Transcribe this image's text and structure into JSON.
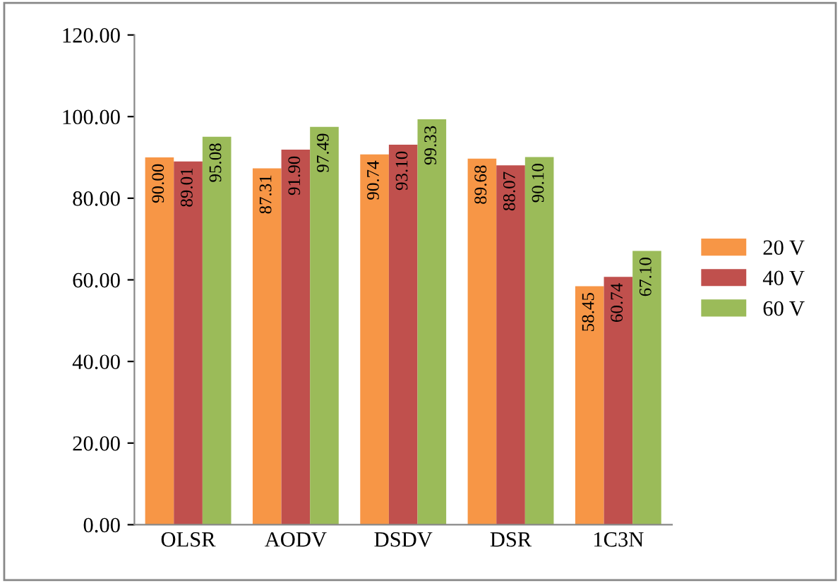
{
  "chart_data": {
    "type": "bar",
    "categories": [
      "OLSR",
      "AODV",
      "DSDV",
      "DSR",
      "1C3N"
    ],
    "series": [
      {
        "name": "20 V",
        "color": "#f79646",
        "values": [
          90.0,
          87.31,
          90.74,
          89.68,
          58.45
        ],
        "value_labels": [
          "90.00",
          "87.31",
          "90.74",
          "89.68",
          "58.45"
        ]
      },
      {
        "name": "40 V",
        "color": "#c0504d",
        "values": [
          89.01,
          91.9,
          93.1,
          88.07,
          60.74
        ],
        "value_labels": [
          "89.01",
          "91.90",
          "93.10",
          "88.07",
          "60.74"
        ]
      },
      {
        "name": "60 V",
        "color": "#9bbb59",
        "values": [
          95.08,
          97.49,
          99.33,
          90.1,
          67.1
        ],
        "value_labels": [
          "95.08",
          "97.49",
          "99.33",
          "90.10",
          "67.10"
        ]
      }
    ],
    "ylim": [
      0,
      120
    ],
    "yticks": [
      {
        "value": 0,
        "label": "0.00"
      },
      {
        "value": 20,
        "label": "20.00"
      },
      {
        "value": 40,
        "label": "40.00"
      },
      {
        "value": 60,
        "label": "60.00"
      },
      {
        "value": 80,
        "label": "80.00"
      },
      {
        "value": 100,
        "label": "100.00"
      },
      {
        "value": 120,
        "label": "120.00"
      }
    ],
    "grid": false,
    "legend": "right"
  }
}
